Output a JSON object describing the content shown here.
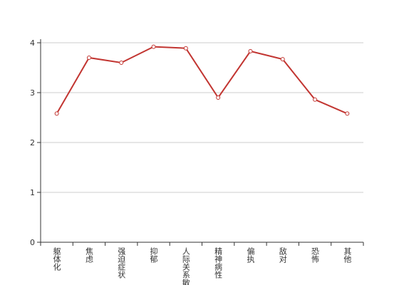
{
  "chart_data": {
    "type": "line",
    "categories": [
      "躯体化",
      "焦虑",
      "强迫症状",
      "抑郁",
      "人际关系敏感",
      "精神病性",
      "偏执",
      "敌对",
      "恐怖",
      "其他"
    ],
    "values": [
      2.58,
      3.7,
      3.6,
      3.92,
      3.89,
      2.9,
      3.83,
      3.67,
      2.86,
      2.58
    ],
    "color": "#c23531",
    "ylim": [
      0,
      4
    ],
    "yticks": [
      0,
      1,
      2,
      3,
      4
    ],
    "grid": true
  }
}
